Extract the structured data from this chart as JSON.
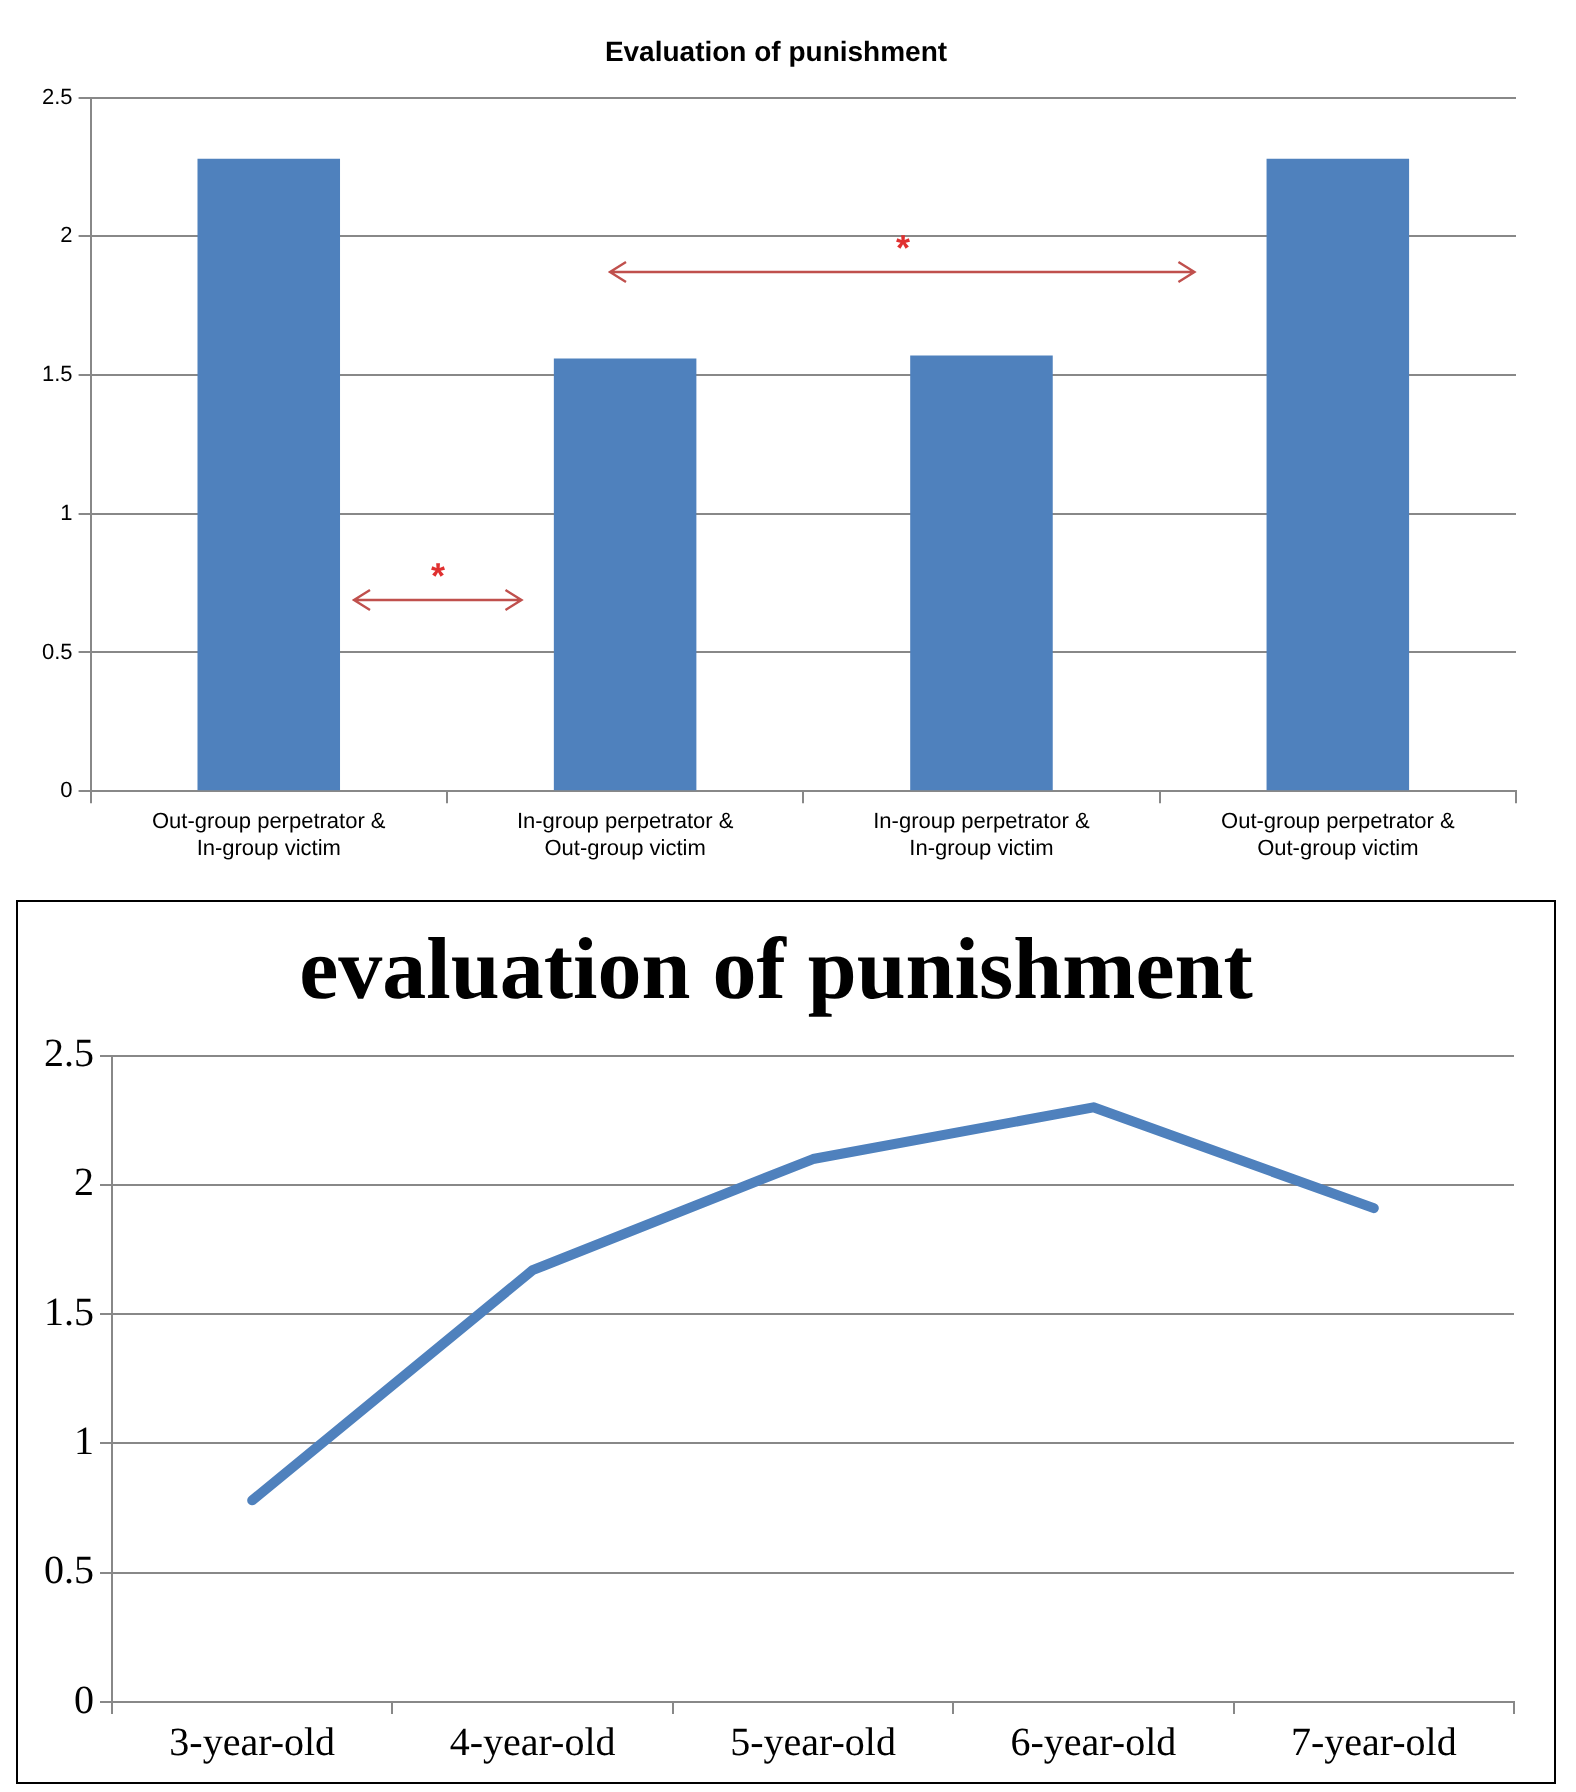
{
  "chart_data": [
    {
      "type": "bar",
      "title": "Evaluation of punishment",
      "categories": [
        "Out-group perpetrator & In-group victim",
        "In-group perpetrator & Out-group victim",
        "In-group perpetrator & In-group victim",
        "Out-group perpetrator & Out-group victim"
      ],
      "series": [
        {
          "color": "#4f81bd",
          "values": [
            2.28,
            1.56,
            1.57,
            2.28
          ]
        }
      ],
      "ylim": [
        0,
        2.5
      ],
      "yticks": [
        0,
        0.5,
        1,
        1.5,
        2,
        2.5
      ],
      "grid": "y",
      "legend": false,
      "annotations": [
        "*",
        "*"
      ]
    },
    {
      "type": "line",
      "title": "evaluation of punishment",
      "categories": [
        "3-year-old",
        "4-year-old",
        "5-year-old",
        "6-year-old",
        "7-year-old"
      ],
      "series": [
        {
          "color": "#4f81bd",
          "values": [
            0.78,
            1.67,
            2.1,
            2.3,
            1.91
          ]
        }
      ],
      "ylim": [
        0,
        2.5
      ],
      "yticks": [
        0,
        0.5,
        1,
        1.5,
        2,
        2.5
      ],
      "grid": "y",
      "legend": false,
      "marker": "none"
    }
  ]
}
